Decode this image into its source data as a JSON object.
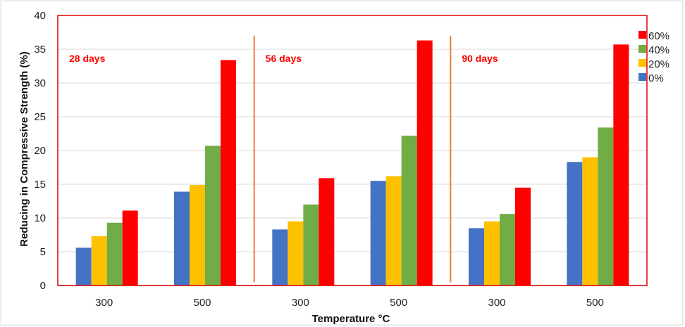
{
  "chart_data": {
    "type": "bar",
    "xlabel": "Temperature °C",
    "ylabel": "Reducing in Compressive Strength (%)",
    "ylim": [
      0,
      40
    ],
    "yticks": [
      0,
      5,
      10,
      15,
      20,
      25,
      30,
      35,
      40
    ],
    "grid": true,
    "legend_position": "right",
    "categories": [
      "300",
      "500",
      "300",
      "500",
      "300",
      "500"
    ],
    "groups": [
      {
        "label": "28 days",
        "categories": [
          0,
          1
        ]
      },
      {
        "label": "56 days",
        "categories": [
          2,
          3
        ]
      },
      {
        "label": "90 days",
        "categories": [
          4,
          5
        ]
      }
    ],
    "series": [
      {
        "name": "0%",
        "color": "#4472c4",
        "values": [
          5.6,
          13.9,
          8.3,
          15.5,
          8.5,
          18.3
        ]
      },
      {
        "name": "20%",
        "color": "#ffc000",
        "values": [
          7.3,
          14.9,
          9.5,
          16.2,
          9.5,
          19.0
        ]
      },
      {
        "name": "40%",
        "color": "#70ad47",
        "values": [
          9.3,
          20.7,
          12.0,
          22.2,
          10.6,
          23.4
        ]
      },
      {
        "name": "60%",
        "color": "#ff0000",
        "values": [
          11.1,
          33.4,
          15.9,
          36.3,
          14.5,
          35.7
        ]
      }
    ],
    "legend_order": [
      3,
      2,
      1,
      0
    ],
    "plot_border_color": "#e00000",
    "separator_color": "#ed7d31"
  }
}
